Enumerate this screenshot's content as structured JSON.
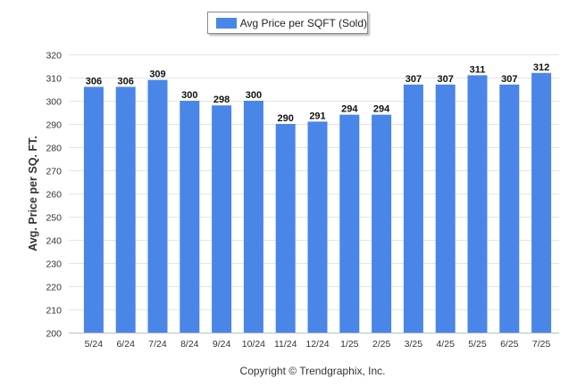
{
  "legend": {
    "label": "Avg Price per SQFT (Sold)"
  },
  "copyright": "Copyright © Trendgraphix, Inc.",
  "colors": {
    "bar": "#4a86e8",
    "grid": "#e4e4e4",
    "axis_text": "#333333"
  },
  "chart_data": {
    "type": "bar",
    "title": "",
    "xlabel": "",
    "ylabel": "Avg. Price per SQ. FT.",
    "categories": [
      "5/24",
      "6/24",
      "7/24",
      "8/24",
      "9/24",
      "10/24",
      "11/24",
      "12/24",
      "1/25",
      "2/25",
      "3/25",
      "4/25",
      "5/25",
      "6/25",
      "7/25"
    ],
    "series": [
      {
        "name": "Avg Price per SQFT (Sold)",
        "values": [
          306,
          306,
          309,
          300,
          298,
          300,
          290,
          291,
          294,
          294,
          307,
          307,
          311,
          307,
          312
        ]
      }
    ],
    "ylim": [
      200,
      320
    ],
    "yticks": [
      200,
      210,
      220,
      230,
      240,
      250,
      260,
      270,
      280,
      290,
      300,
      310,
      320
    ],
    "grid": true,
    "legend_position": "top-center",
    "data_labels": true
  }
}
